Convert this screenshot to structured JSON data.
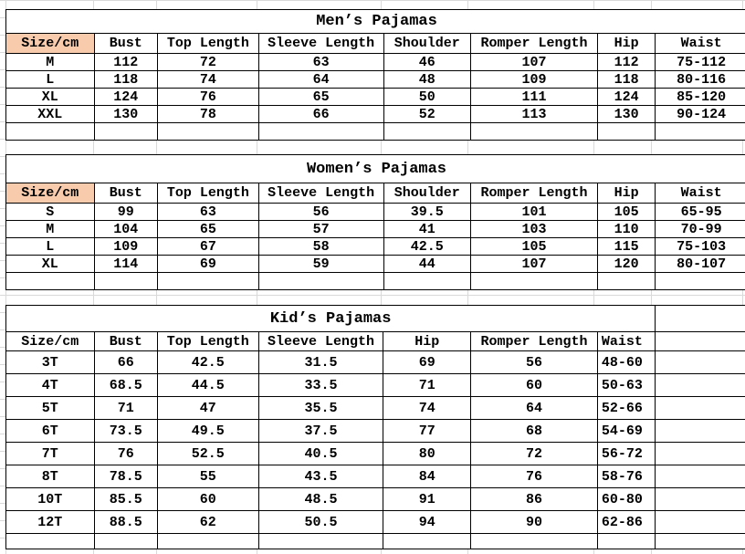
{
  "colors": {
    "size_header_bg": "#f8cbad",
    "border": "#000000"
  },
  "mens": {
    "title": "Men’s Pajamas",
    "headers": [
      "Size/cm",
      "Bust",
      "Top Length",
      "Sleeve Length",
      "Shoulder",
      "Romper Length",
      "Hip",
      "Waist"
    ],
    "rows": [
      [
        "M",
        "112",
        "72",
        "63",
        "46",
        "107",
        "112",
        "75-112"
      ],
      [
        "L",
        "118",
        "74",
        "64",
        "48",
        "109",
        "118",
        "80-116"
      ],
      [
        "XL",
        "124",
        "76",
        "65",
        "50",
        "111",
        "124",
        "85-120"
      ],
      [
        "XXL",
        "130",
        "78",
        "66",
        "52",
        "113",
        "130",
        "90-124"
      ]
    ]
  },
  "womens": {
    "title": "Women’s Pajamas",
    "headers": [
      "Size/cm",
      "Bust",
      "Top Length",
      "Sleeve Length",
      "Shoulder",
      "Romper Length",
      "Hip",
      "Waist"
    ],
    "rows": [
      [
        "S",
        "99",
        "63",
        "56",
        "39.5",
        "101",
        "105",
        "65-95"
      ],
      [
        "M",
        "104",
        "65",
        "57",
        "41",
        "103",
        "110",
        "70-99"
      ],
      [
        "L",
        "109",
        "67",
        "58",
        "42.5",
        "105",
        "115",
        "75-103"
      ],
      [
        "XL",
        "114",
        "69",
        "59",
        "44",
        "107",
        "120",
        "80-107"
      ]
    ]
  },
  "kids": {
    "title": "Kid’s Pajamas",
    "headers": [
      "Size/cm",
      "Bust",
      "Top Length",
      "Sleeve Length",
      "Hip",
      "Romper Length",
      "Waist"
    ],
    "rows": [
      [
        "3T",
        "66",
        "42.5",
        "31.5",
        "69",
        "56",
        "48-60"
      ],
      [
        "4T",
        "68.5",
        "44.5",
        "33.5",
        "71",
        "60",
        "50-63"
      ],
      [
        "5T",
        "71",
        "47",
        "35.5",
        "74",
        "64",
        "52-66"
      ],
      [
        "6T",
        "73.5",
        "49.5",
        "37.5",
        "77",
        "68",
        "54-69"
      ],
      [
        "7T",
        "76",
        "52.5",
        "40.5",
        "80",
        "72",
        "56-72"
      ],
      [
        "8T",
        "78.5",
        "55",
        "43.5",
        "84",
        "76",
        "58-76"
      ],
      [
        "10T",
        "85.5",
        "60",
        "48.5",
        "91",
        "86",
        "60-80"
      ],
      [
        "12T",
        "88.5",
        "62",
        "50.5",
        "94",
        "90",
        "62-86"
      ]
    ]
  }
}
